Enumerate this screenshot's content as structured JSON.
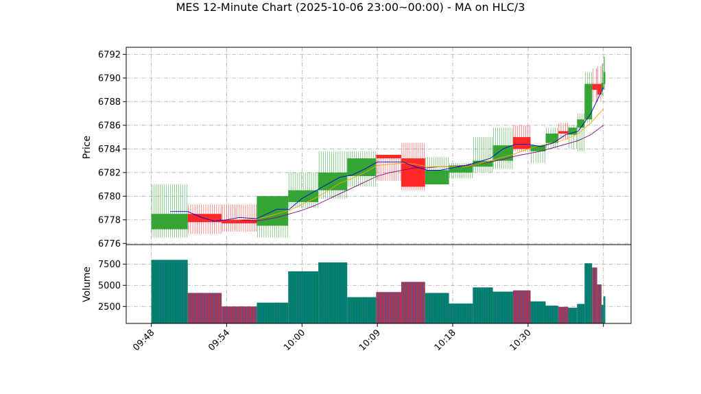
{
  "chart_data": {
    "type": "candlestick",
    "title": "MES 12-Minute Chart (2025-10-06 23:00~00:00) - MA on HLC/3",
    "price_panel": {
      "ylabel": "Price",
      "ylim": [
        6775.9,
        6792.6
      ],
      "yticks": [
        6776,
        6778,
        6780,
        6782,
        6784,
        6786,
        6788,
        6790,
        6792
      ],
      "grid": true
    },
    "volume_panel": {
      "ylabel": "Volume",
      "ylim": [
        500,
        9800
      ],
      "yticks": [
        2500,
        5000,
        7500
      ],
      "ytick_labels": [
        "2500",
        "5000",
        "7500"
      ],
      "grid": true
    },
    "x_ticks": [
      {
        "t": 0,
        "label": "09:48"
      },
      {
        "t": 6,
        "label": "09:54"
      },
      {
        "t": 12,
        "label": "10:00"
      },
      {
        "t": 18,
        "label": "10:09"
      },
      {
        "t": 24,
        "label": "10:18"
      },
      {
        "t": 30,
        "label": "10:30"
      },
      {
        "t": 36,
        "label": ""
      }
    ],
    "xlim": [
      -2,
      38.2
    ],
    "colors": {
      "up": "#2ca02c",
      "down": "#ff2020",
      "ma_fast": "#0000cc",
      "ma_mid": "#ffa500",
      "ma_slow": "#800080",
      "volume_up": "#008060",
      "volume_down": "#b03050",
      "volume_line": "#1f77b4"
    },
    "bars": [
      {
        "t0": 0,
        "t1": 2.9,
        "open": 6777.2,
        "close": 6778.5,
        "high": 6781.0,
        "low": 6776.5,
        "volume": 8000
      },
      {
        "t0": 2.9,
        "t1": 5.6,
        "open": 6778.5,
        "close": 6777.8,
        "high": 6779.3,
        "low": 6776.8,
        "volume": 4100
      },
      {
        "t0": 5.6,
        "t1": 8.4,
        "open": 6778.0,
        "close": 6777.7,
        "high": 6779.3,
        "low": 6777.0,
        "volume": 2500
      },
      {
        "t0": 8.4,
        "t1": 10.9,
        "open": 6777.5,
        "close": 6780.0,
        "high": 6780.0,
        "low": 6776.5,
        "volume": 2950
      },
      {
        "t0": 10.9,
        "t1": 13.3,
        "open": 6779.5,
        "close": 6780.5,
        "high": 6782.0,
        "low": 6779.0,
        "volume": 6650
      },
      {
        "t0": 13.3,
        "t1": 15.6,
        "open": 6780.5,
        "close": 6782.0,
        "high": 6783.8,
        "low": 6779.8,
        "volume": 7700
      },
      {
        "t0": 15.6,
        "t1": 17.9,
        "open": 6781.7,
        "close": 6783.2,
        "high": 6783.8,
        "low": 6780.8,
        "volume": 3600
      },
      {
        "t0": 17.9,
        "t1": 19.9,
        "open": 6783.5,
        "close": 6783.2,
        "high": 6783.5,
        "low": 6781.3,
        "volume": 4200
      },
      {
        "t0": 19.9,
        "t1": 21.8,
        "open": 6783.2,
        "close": 6780.8,
        "high": 6784.5,
        "low": 6780.5,
        "volume": 5400
      },
      {
        "t0": 21.8,
        "t1": 23.7,
        "open": 6781.0,
        "close": 6782.2,
        "high": 6783.3,
        "low": 6781.0,
        "volume": 4100
      },
      {
        "t0": 23.7,
        "t1": 25.6,
        "open": 6782.0,
        "close": 6782.6,
        "high": 6782.8,
        "low": 6781.5,
        "volume": 2850
      },
      {
        "t0": 25.6,
        "t1": 27.2,
        "open": 6782.5,
        "close": 6783.0,
        "high": 6785.0,
        "low": 6782.0,
        "volume": 4750
      },
      {
        "t0": 27.2,
        "t1": 28.8,
        "open": 6783.0,
        "close": 6784.3,
        "high": 6785.8,
        "low": 6782.3,
        "volume": 4250
      },
      {
        "t0": 28.8,
        "t1": 30.2,
        "open": 6785.0,
        "close": 6784.0,
        "high": 6786.0,
        "low": 6783.8,
        "volume": 4400
      },
      {
        "t0": 30.2,
        "t1": 31.4,
        "open": 6783.8,
        "close": 6784.3,
        "high": 6784.3,
        "low": 6782.8,
        "volume": 3100
      },
      {
        "t0": 31.4,
        "t1": 32.4,
        "open": 6784.5,
        "close": 6785.3,
        "high": 6785.8,
        "low": 6784.0,
        "volume": 2600
      },
      {
        "t0": 32.4,
        "t1": 33.2,
        "open": 6785.5,
        "close": 6785.3,
        "high": 6786.2,
        "low": 6784.8,
        "volume": 2450
      },
      {
        "t0": 33.2,
        "t1": 33.9,
        "open": 6785.2,
        "close": 6785.8,
        "high": 6786.0,
        "low": 6784.0,
        "volume": 2350
      },
      {
        "t0": 33.9,
        "t1": 34.5,
        "open": 6785.8,
        "close": 6786.5,
        "high": 6787.0,
        "low": 6783.8,
        "volume": 2800
      },
      {
        "t0": 34.5,
        "t1": 35.1,
        "open": 6786.5,
        "close": 6789.5,
        "high": 6790.5,
        "low": 6786.2,
        "volume": 7600
      },
      {
        "t0": 35.1,
        "t1": 35.5,
        "open": 6789.5,
        "close": 6789.0,
        "high": 6790.8,
        "low": 6788.0,
        "volume": 7100
      },
      {
        "t0": 35.5,
        "t1": 35.85,
        "open": 6789.5,
        "close": 6788.6,
        "high": 6791.0,
        "low": 6788.0,
        "volume": 5100
      },
      {
        "t0": 35.85,
        "t1": 36.0,
        "open": 6789.0,
        "close": 6789.6,
        "high": 6791.2,
        "low": 6788.5,
        "volume": 2700
      },
      {
        "t0": 36.0,
        "t1": 36.15,
        "open": 6789.5,
        "close": 6790.5,
        "high": 6791.8,
        "low": 6789.0,
        "volume": 3700
      }
    ],
    "ma_fast": [
      [
        1.5,
        6778.7
      ],
      [
        2.9,
        6778.7
      ],
      [
        4,
        6778.2
      ],
      [
        5,
        6777.9
      ],
      [
        6,
        6778.0
      ],
      [
        7,
        6778.2
      ],
      [
        8.4,
        6778.1
      ],
      [
        9,
        6778.4
      ],
      [
        10,
        6778.9
      ],
      [
        11,
        6778.9
      ],
      [
        12,
        6779.8
      ],
      [
        13,
        6780.4
      ],
      [
        14,
        6781.0
      ],
      [
        15,
        6781.6
      ],
      [
        16,
        6781.8
      ],
      [
        17,
        6782.3
      ],
      [
        18,
        6782.9
      ],
      [
        19,
        6782.9
      ],
      [
        20,
        6782.9
      ],
      [
        21,
        6782.5
      ],
      [
        22,
        6782.2
      ],
      [
        23,
        6782.2
      ],
      [
        24,
        6782.4
      ],
      [
        25,
        6782.6
      ],
      [
        26,
        6782.9
      ],
      [
        27,
        6783.2
      ],
      [
        28,
        6784.0
      ],
      [
        29,
        6784.4
      ],
      [
        30,
        6784.4
      ],
      [
        31,
        6784.2
      ],
      [
        32,
        6784.5
      ],
      [
        33,
        6785.2
      ],
      [
        34,
        6785.5
      ],
      [
        35,
        6787.0
      ],
      [
        36,
        6789.2
      ]
    ],
    "ma_mid": [
      [
        7,
        6778.0
      ],
      [
        8.4,
        6778.1
      ],
      [
        9,
        6778.2
      ],
      [
        10,
        6778.5
      ],
      [
        11,
        6778.8
      ],
      [
        12,
        6779.3
      ],
      [
        13,
        6779.8
      ],
      [
        14,
        6780.4
      ],
      [
        15,
        6781.1
      ],
      [
        16,
        6781.5
      ],
      [
        17,
        6782.0
      ],
      [
        18,
        6782.6
      ],
      [
        19,
        6782.7
      ],
      [
        20,
        6782.8
      ],
      [
        21,
        6782.7
      ],
      [
        22,
        6782.5
      ],
      [
        23,
        6782.5
      ],
      [
        24,
        6782.5
      ],
      [
        25,
        6782.5
      ],
      [
        26,
        6782.7
      ],
      [
        27,
        6783.0
      ],
      [
        28,
        6783.3
      ],
      [
        29,
        6783.6
      ],
      [
        30,
        6784.0
      ],
      [
        31,
        6784.3
      ],
      [
        32,
        6784.5
      ],
      [
        33,
        6784.8
      ],
      [
        34,
        6785.3
      ],
      [
        35,
        6786.2
      ],
      [
        36,
        6787.4
      ]
    ],
    "ma_slow": [
      [
        7,
        6778.0
      ],
      [
        8.4,
        6777.9
      ],
      [
        9,
        6778.0
      ],
      [
        10,
        6778.2
      ],
      [
        11,
        6778.5
      ],
      [
        12,
        6778.8
      ],
      [
        13,
        6779.2
      ],
      [
        14,
        6779.7
      ],
      [
        15,
        6780.2
      ],
      [
        16,
        6780.7
      ],
      [
        17,
        6781.2
      ],
      [
        18,
        6781.7
      ],
      [
        19,
        6782.0
      ],
      [
        20,
        6782.2
      ],
      [
        21,
        6782.4
      ],
      [
        22,
        6782.4
      ],
      [
        23,
        6782.5
      ],
      [
        24,
        6782.5
      ],
      [
        25,
        6782.6
      ],
      [
        26,
        6782.7
      ],
      [
        27,
        6782.9
      ],
      [
        28,
        6783.1
      ],
      [
        29,
        6783.4
      ],
      [
        30,
        6783.6
      ],
      [
        31,
        6783.8
      ],
      [
        32,
        6784.1
      ],
      [
        33,
        6784.4
      ],
      [
        34,
        6784.7
      ],
      [
        35,
        6785.2
      ],
      [
        36,
        6786.0
      ]
    ]
  }
}
